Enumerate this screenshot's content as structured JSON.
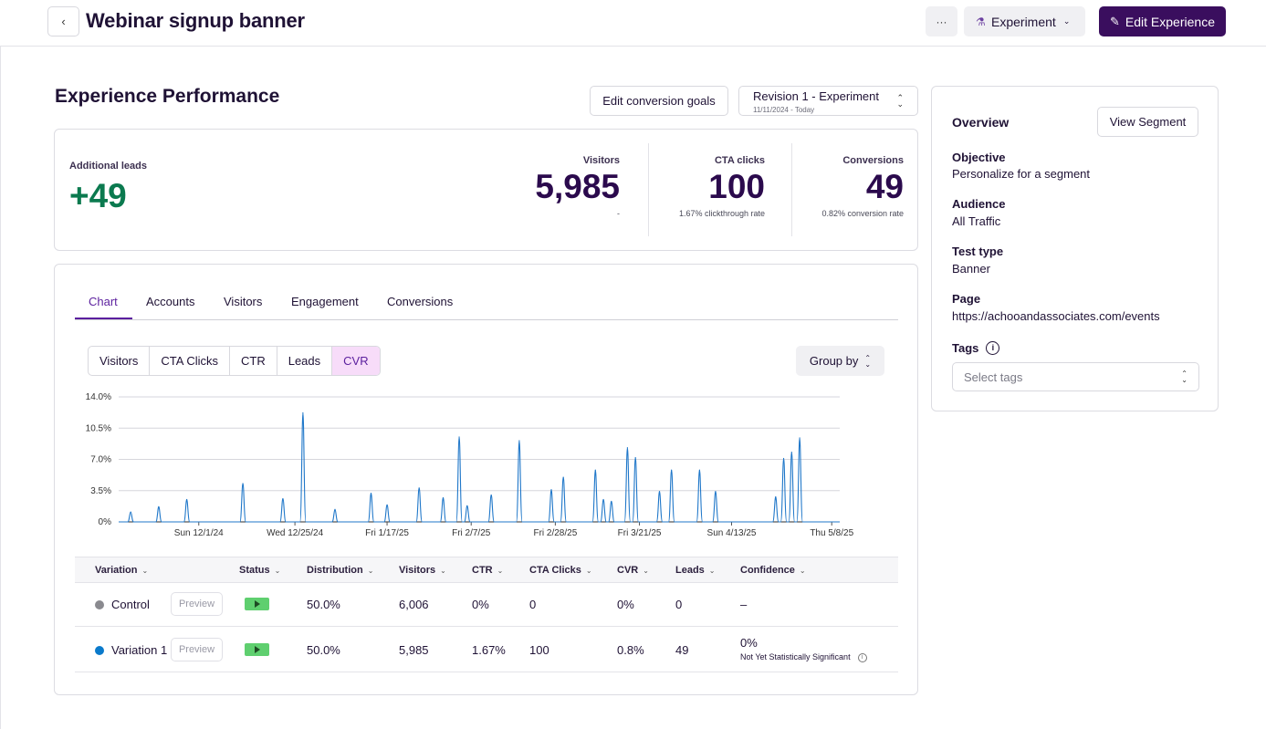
{
  "header": {
    "back_icon": "chevron-left-icon",
    "title": "Webinar signup banner",
    "more_label": "···",
    "experiment_label": "Experiment",
    "edit_experience_label": "Edit Experience"
  },
  "performance": {
    "title": "Experience Performance",
    "edit_goals_label": "Edit conversion goals",
    "revision": {
      "label": "Revision 1 - Experiment",
      "dates": "11/11/2024 - Today"
    }
  },
  "stats": {
    "additional_leads": {
      "label": "Additional leads",
      "value": "+49"
    },
    "visitors": {
      "label": "Visitors",
      "value": "5,985",
      "sub": "-"
    },
    "cta_clicks": {
      "label": "CTA clicks",
      "value": "100",
      "sub": "1.67% clickthrough rate"
    },
    "conversions": {
      "label": "Conversions",
      "value": "49",
      "sub": "0.82% conversion rate"
    }
  },
  "tabs": [
    "Chart",
    "Accounts",
    "Visitors",
    "Engagement",
    "Conversions"
  ],
  "active_tab": "Chart",
  "metric_toggle": [
    "Visitors",
    "CTA Clicks",
    "CTR",
    "Leads",
    "CVR"
  ],
  "active_metric": "CVR",
  "group_by_label": "Group by",
  "chart_data": {
    "type": "line",
    "y_ticks": [
      "14.0%",
      "10.5%",
      "7.0%",
      "3.5%",
      "0%"
    ],
    "ylim": [
      0,
      14
    ],
    "x_ticks": [
      "Sun 12/1/24",
      "Wed 12/25/24",
      "Fri 1/17/25",
      "Fri 2/7/25",
      "Fri 2/28/25",
      "Fri 3/21/25",
      "Sun 4/13/25",
      "Thu 5/8/25"
    ],
    "x_tick_days": [
      20,
      44,
      67,
      88,
      109,
      130,
      153,
      178
    ],
    "x_range_days": [
      0,
      180
    ],
    "series": [
      {
        "color": "#1f77c9",
        "points": [
          [
            3,
            1.1
          ],
          [
            10,
            1.7
          ],
          [
            17,
            2.5
          ],
          [
            31,
            4.3
          ],
          [
            41,
            2.6
          ],
          [
            46,
            12.2
          ],
          [
            54,
            1.4
          ],
          [
            63,
            3.2
          ],
          [
            67,
            1.9
          ],
          [
            75,
            3.8
          ],
          [
            81,
            2.7
          ],
          [
            85,
            9.5
          ],
          [
            87,
            1.8
          ],
          [
            93,
            3.0
          ],
          [
            100,
            9.1
          ],
          [
            108,
            3.6
          ],
          [
            111,
            5.0
          ],
          [
            119,
            5.8
          ],
          [
            121,
            2.5
          ],
          [
            123,
            2.3
          ],
          [
            127,
            8.3
          ],
          [
            129,
            7.2
          ],
          [
            135,
            3.4
          ],
          [
            138,
            5.8
          ],
          [
            145,
            5.8
          ],
          [
            149,
            3.4
          ],
          [
            164,
            2.8
          ],
          [
            166,
            7.1
          ],
          [
            168,
            7.8
          ],
          [
            170,
            9.4
          ]
        ]
      }
    ]
  },
  "table": {
    "headers": [
      "Variation",
      "Status",
      "Distribution",
      "Visitors",
      "CTR",
      "CTA Clicks",
      "CVR",
      "Leads",
      "Confidence"
    ],
    "rows": [
      {
        "name": "Control",
        "dot_color": "#8a8a8f",
        "preview": "Preview",
        "distribution": "50.0%",
        "visitors": "6,006",
        "ctr": "0%",
        "cta_clicks": "0",
        "cvr": "0%",
        "leads": "0",
        "confidence": "–",
        "confidence_note": ""
      },
      {
        "name": "Variation 1",
        "dot_color": "#0a7acb",
        "preview": "Preview",
        "distribution": "50.0%",
        "visitors": "5,985",
        "ctr": "1.67%",
        "cta_clicks": "100",
        "cvr": "0.8%",
        "leads": "49",
        "confidence": "0%",
        "confidence_note": "Not Yet Statistically Significant"
      }
    ]
  },
  "overview": {
    "title": "Overview",
    "view_segment_label": "View Segment",
    "objective": {
      "label": "Objective",
      "value": "Personalize for a segment"
    },
    "audience": {
      "label": "Audience",
      "value": "All Traffic"
    },
    "test_type": {
      "label": "Test type",
      "value": "Banner"
    },
    "page": {
      "label": "Page",
      "value": "https://achooandassociates.com/events"
    },
    "tags": {
      "label": "Tags",
      "placeholder": "Select tags"
    }
  }
}
